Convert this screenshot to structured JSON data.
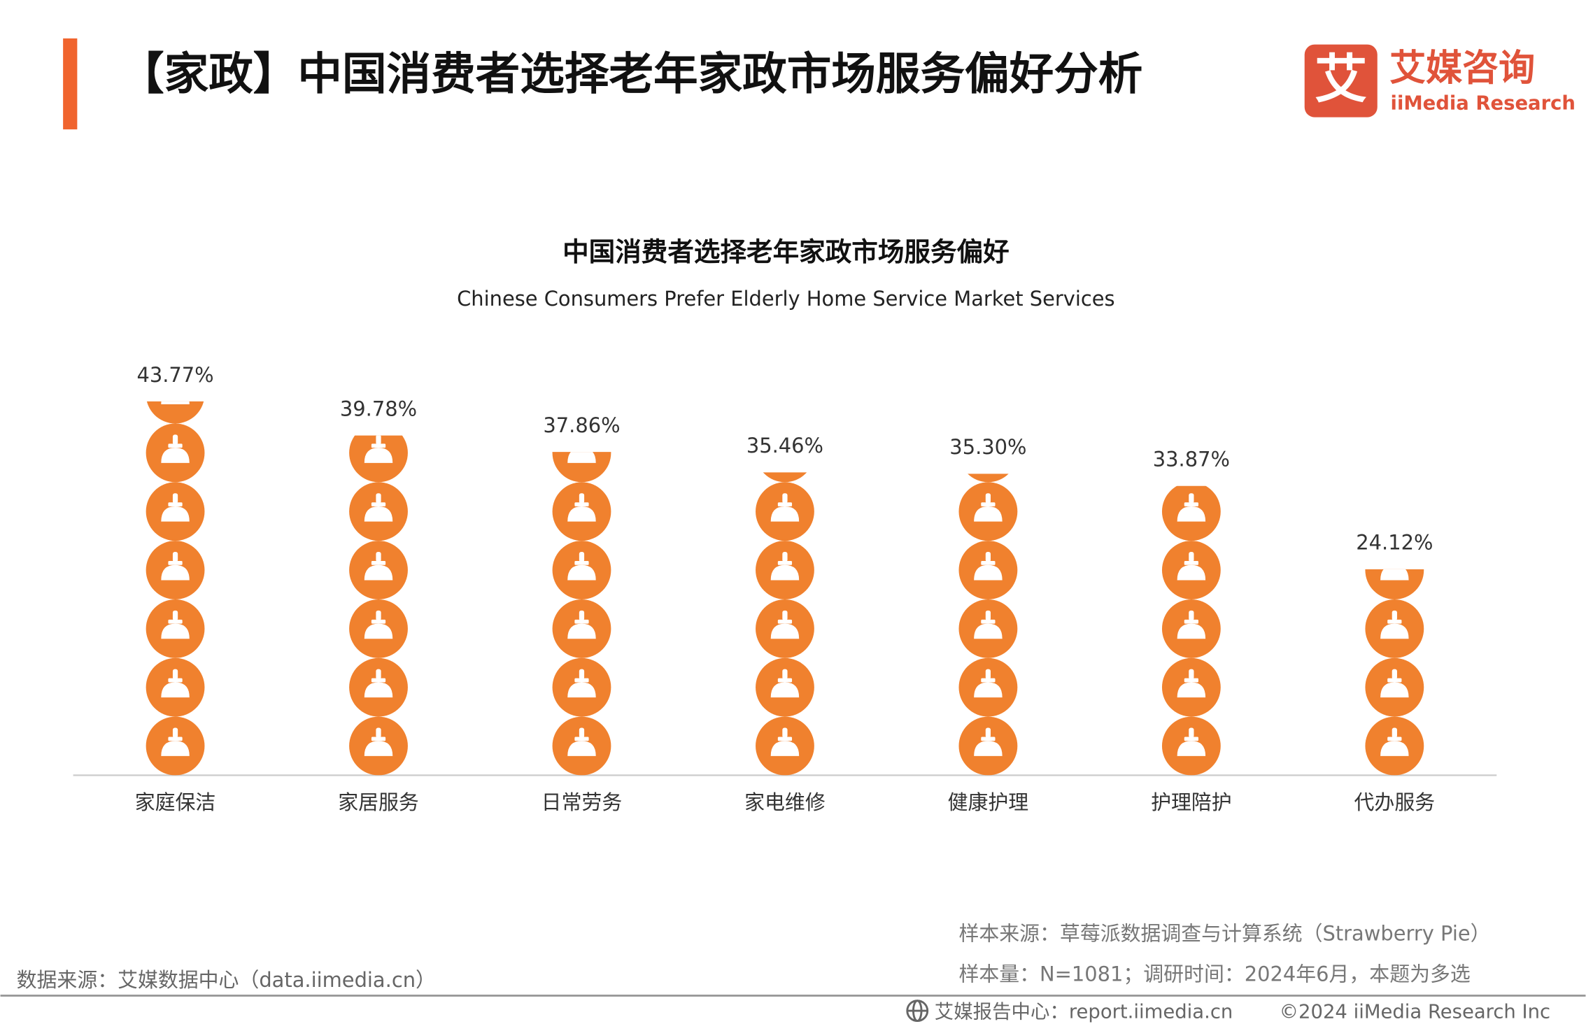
{
  "header": {
    "title": "【家政】中国消费者选择老年家政市场服务偏好分析"
  },
  "logo": {
    "mark": "艾",
    "cn": "艾媒咨询",
    "en": "iiMedia Research"
  },
  "chart_data": {
    "type": "pictogram",
    "title": "中国消费者选择老年家政市场服务偏好",
    "subtitle": "Chinese Consumers Prefer Elderly Home Service Market Services",
    "categories": [
      "家庭保洁",
      "家居服务",
      "日常劳务",
      "家电维修",
      "健康护理",
      "护理陪护",
      "代办服务"
    ],
    "values": [
      43.77,
      39.78,
      37.86,
      35.46,
      35.3,
      33.87,
      24.12
    ],
    "value_labels": [
      "43.77%",
      "39.78%",
      "37.86%",
      "35.46%",
      "35.30%",
      "33.87%",
      "24.12%"
    ],
    "color": "#f0812e"
  },
  "notes": [
    "样本来源：草莓派数据调查与计算系统（Strawberry Pie）",
    "样本量：N=1081；调研时间：2024年6月，本题为多选"
  ],
  "footer": {
    "source": "数据来源：艾媒数据中心（data.iimedia.cn）",
    "report": "艾媒报告中心：report.iimedia.cn",
    "copyright": "©2024  iiMedia Research Inc"
  }
}
